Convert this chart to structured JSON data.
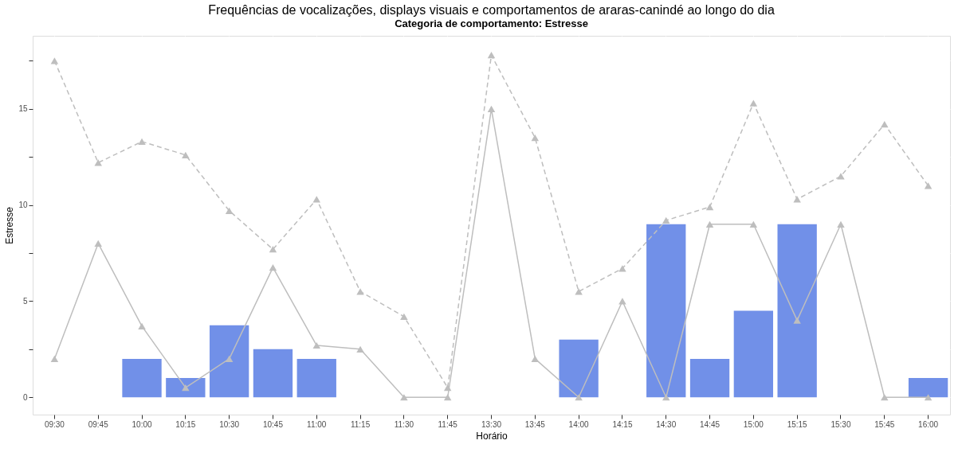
{
  "chart_data": {
    "type": "bar",
    "title": "Frequências de vocalizações, displays visuais e comportamentos de araras-canindé ao longo do dia",
    "subtitle": "Categoria de comportamento: Estresse",
    "xlabel": "Horário",
    "ylabel": "Estresse",
    "categories": [
      "09:30",
      "09:45",
      "10:00",
      "10:15",
      "10:30",
      "10:45",
      "11:00",
      "11:15",
      "11:30",
      "11:45",
      "13:30",
      "13:45",
      "14:00",
      "14:15",
      "14:30",
      "14:45",
      "15:00",
      "15:15",
      "15:30",
      "15:45",
      "16:00"
    ],
    "series": [
      {
        "color": "#7190e8",
        "values": [
          null,
          null,
          2,
          1,
          3.75,
          2.5,
          2,
          null,
          null,
          null,
          null,
          null,
          3,
          null,
          9,
          2,
          4.5,
          9,
          null,
          null,
          1
        ]
      },
      {
        "type": "line",
        "color": "#bebebe",
        "line_style": "solid",
        "marker": "triangle",
        "values": [
          2,
          8,
          3.7,
          0.5,
          2,
          6.75,
          2.7,
          2.5,
          0,
          0,
          15,
          2,
          0,
          5,
          0,
          9,
          9,
          4,
          9,
          0,
          0
        ]
      },
      {
        "type": "line",
        "color": "#bebebe",
        "line_style": "dashed",
        "marker": "triangle",
        "values": [
          17.5,
          12.2,
          13.3,
          12.6,
          9.7,
          7.7,
          10.3,
          5.5,
          4.2,
          0.5,
          17.8,
          13.5,
          5.5,
          6.7,
          9.2,
          9.9,
          15.3,
          10.3,
          11.5,
          14.2,
          11.0
        ]
      }
    ],
    "ylim": [
      -0.9,
      18.8
    ],
    "yticks": [
      0,
      {
        "value": 2.5,
        "label": null
      },
      5,
      {
        "value": 7.5,
        "label": null
      },
      10,
      {
        "value": 12.5,
        "label": null
      },
      15,
      {
        "value": 17.5,
        "label": null
      }
    ],
    "grid": true
  }
}
